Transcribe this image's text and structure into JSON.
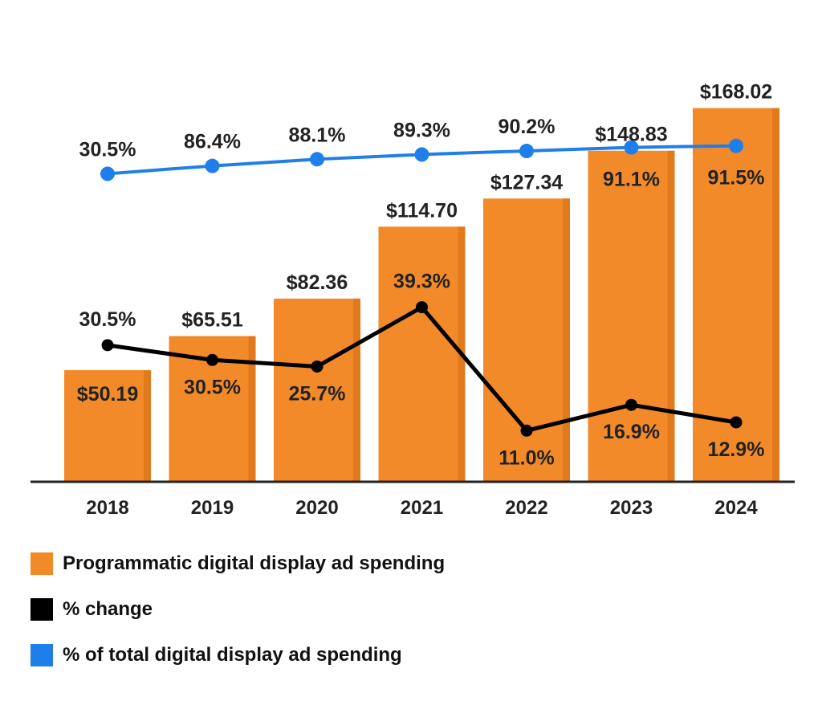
{
  "chart_data": {
    "type": "bar",
    "categories": [
      "2018",
      "2019",
      "2020",
      "2021",
      "2022",
      "2023",
      "2024"
    ],
    "series": [
      {
        "name": "Programmatic digital display ad spending",
        "kind": "bar",
        "values": [
          50.19,
          65.51,
          82.36,
          114.7,
          127.34,
          148.83,
          168.02
        ],
        "labels": [
          "$50.19",
          "$65.51",
          "$82.36",
          "$114.70",
          "$127.34",
          "$148.83",
          "$168.02"
        ],
        "color": "#F28A2A"
      },
      {
        "name": "% change",
        "kind": "line",
        "values": [
          30.5,
          30.5,
          25.7,
          39.3,
          11.0,
          16.9,
          12.9
        ],
        "labels": [
          "30.5%",
          "30.5%",
          "25.7%",
          "39.3%",
          "11.0%",
          "16.9%",
          "12.9%"
        ],
        "color": "#000000"
      },
      {
        "name": "% of total digital display ad spending",
        "kind": "line",
        "values": [
          30.5,
          86.4,
          88.1,
          89.3,
          90.2,
          91.1,
          91.5
        ],
        "labels": [
          "30.5%",
          "86.4%",
          "88.1%",
          "89.3%",
          "90.2%",
          "91.1%",
          "91.5%"
        ],
        "color": "#1F7FEA"
      }
    ],
    "grid": false,
    "legend_position": "bottom-left"
  }
}
